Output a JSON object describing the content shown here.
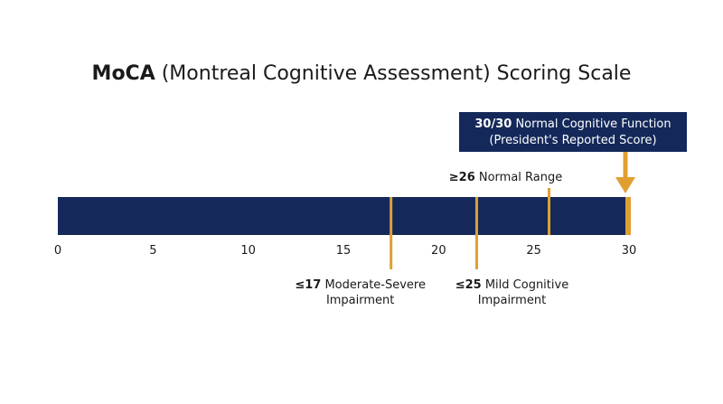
{
  "chart_data": {
    "type": "bar",
    "title_bold": "MoCA",
    "title_rest": " (Montreal Cognitive Assessment) Scoring Scale",
    "xlim": [
      0,
      30
    ],
    "ticks": [
      {
        "value": 0,
        "label": "0"
      },
      {
        "value": 5,
        "label": "5"
      },
      {
        "value": 10,
        "label": "10"
      },
      {
        "value": 15,
        "label": "15"
      },
      {
        "value": 20,
        "label": "20"
      },
      {
        "value": 25,
        "label": "25"
      },
      {
        "value": 30,
        "label": "30"
      }
    ],
    "markers": [
      {
        "value": 17.5,
        "bold": "≤17",
        "text": " Moderate-Severe",
        "line2": "Impairment",
        "position": "below"
      },
      {
        "value": 22,
        "bold": "≤25",
        "text": " Mild Cognitive",
        "line2": "Impairment",
        "position": "below"
      },
      {
        "value": 25.8,
        "bold": "≥26",
        "text": " Normal Range",
        "line2": "",
        "position": "above"
      }
    ],
    "highlight": {
      "value": 30,
      "bold": "30/30",
      "text": " Normal Cognitive Function",
      "line2": "(President's Reported Score)"
    },
    "colors": {
      "bar": "#14295a",
      "accent": "#e0a030",
      "text": "#1a1a1a",
      "box_text": "#ffffff"
    }
  }
}
